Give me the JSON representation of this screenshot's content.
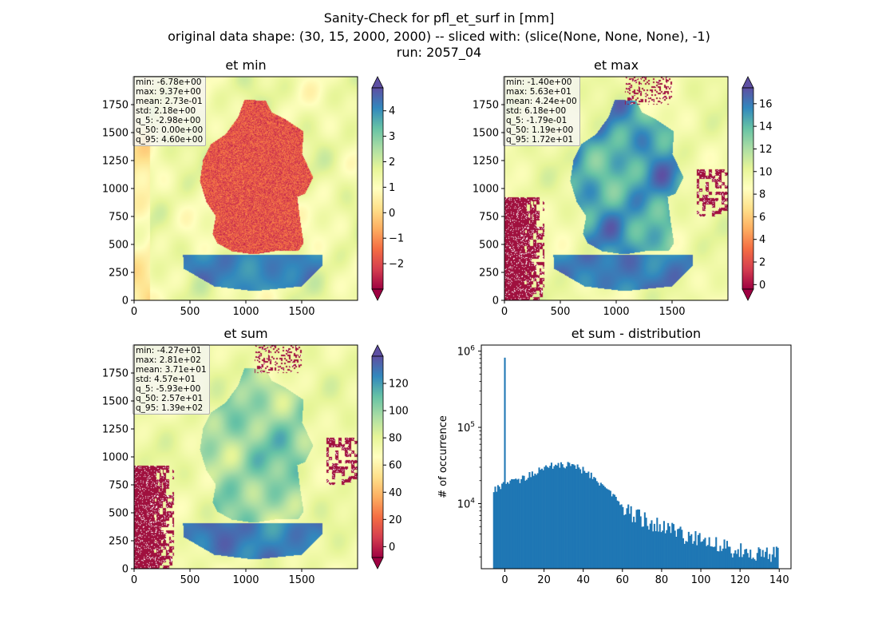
{
  "suptitle": {
    "line1": "Sanity-Check for pfl_et_surf in [mm]",
    "line2": "original data shape: (30, 15, 2000, 2000) -- sliced with: (slice(None, None, None), -1)",
    "line3": "run: 2057_04"
  },
  "colors": {
    "colormap": "Spectral",
    "colormap_stops": [
      "#9e0142",
      "#d53e4f",
      "#f46d43",
      "#fdae61",
      "#fee08b",
      "#ffffbf",
      "#e6f598",
      "#abdda4",
      "#66c2a5",
      "#3288bd",
      "#5e4fa2"
    ],
    "hist_bar": "#1f77b4",
    "germany_min": "#c4364a",
    "masked_red": "#a0103e"
  },
  "chart_data": [
    {
      "type": "heatmap",
      "title": "et min",
      "xticks": [
        "0",
        "500",
        "1000",
        "1500"
      ],
      "yticks": [
        "0",
        "250",
        "500",
        "750",
        "1000",
        "1250",
        "1500",
        "1750"
      ],
      "xlim": [
        0,
        2000
      ],
      "ylim": [
        0,
        2000
      ],
      "colorbar": {
        "ticks": [
          "−2",
          "−1",
          "0",
          "1",
          "2",
          "3",
          "4"
        ],
        "range": [
          -3.0,
          4.9
        ],
        "extend": "both"
      },
      "stats": [
        "min: -6.78e+00",
        "max: 9.37e+00",
        "mean: 2.73e-01",
        "std: 2.18e+00",
        "q_5: -2.98e+00",
        "q_50: 0.00e+00",
        "q_95: 4.60e+00"
      ]
    },
    {
      "type": "heatmap",
      "title": "et max",
      "xticks": [
        "0",
        "500",
        "1000",
        "1500"
      ],
      "yticks": [
        "0",
        "250",
        "500",
        "750",
        "1000",
        "1250",
        "1500",
        "1750"
      ],
      "xlim": [
        0,
        2000
      ],
      "ylim": [
        0,
        2000
      ],
      "colorbar": {
        "ticks": [
          "0",
          "2",
          "4",
          "6",
          "8",
          "10",
          "12",
          "14",
          "16"
        ],
        "range": [
          -0.4,
          17.4
        ],
        "extend": "both"
      },
      "stats": [
        "min: -1.40e+00",
        "max: 5.63e+01",
        "mean: 4.24e+00",
        "std: 6.18e+00",
        "q_5: -1.79e-01",
        "q_50: 1.19e+00",
        "q_95: 1.72e+01"
      ]
    },
    {
      "type": "heatmap",
      "title": "et sum",
      "xticks": [
        "0",
        "500",
        "1000",
        "1500"
      ],
      "yticks": [
        "0",
        "250",
        "500",
        "750",
        "1000",
        "1250",
        "1500",
        "1750"
      ],
      "xlim": [
        0,
        2000
      ],
      "ylim": [
        0,
        2000
      ],
      "colorbar": {
        "ticks": [
          "0",
          "20",
          "40",
          "60",
          "80",
          "100",
          "120"
        ],
        "range": [
          -8,
          140
        ],
        "extend": "both"
      },
      "stats": [
        "min: -4.27e+01",
        "max: 2.81e+02",
        "mean: 3.71e+01",
        "std: 4.57e+01",
        "q_5: -5.93e+00",
        "q_50: 2.57e+01",
        "q_95: 1.39e+02"
      ]
    },
    {
      "type": "bar",
      "title": "et sum - distribution",
      "xlabel": "",
      "ylabel": "# of occurrence",
      "yscale": "log",
      "xticks": [
        "0",
        "20",
        "40",
        "60",
        "80",
        "100",
        "120",
        "140"
      ],
      "yticks": [
        "10^4",
        "10^5",
        "10^6"
      ],
      "xlim": [
        -12,
        146
      ],
      "ylim": [
        1400,
        1200000
      ],
      "bin_width": 0.7,
      "peak": {
        "x": 0,
        "count": 820000
      },
      "profile_x": [
        -6,
        -4,
        -2,
        0,
        5,
        10,
        15,
        20,
        25,
        30,
        35,
        40,
        45,
        50,
        55,
        60,
        65,
        70,
        75,
        80,
        85,
        90,
        100,
        110,
        120,
        130,
        139
      ],
      "profile_count": [
        14500,
        16000,
        17000,
        18000,
        19500,
        22000,
        26000,
        29500,
        32000,
        32500,
        31000,
        27500,
        22000,
        17500,
        13000,
        9500,
        7500,
        6400,
        5600,
        5000,
        4500,
        4000,
        3300,
        2800,
        2500,
        2300,
        2200
      ]
    }
  ]
}
